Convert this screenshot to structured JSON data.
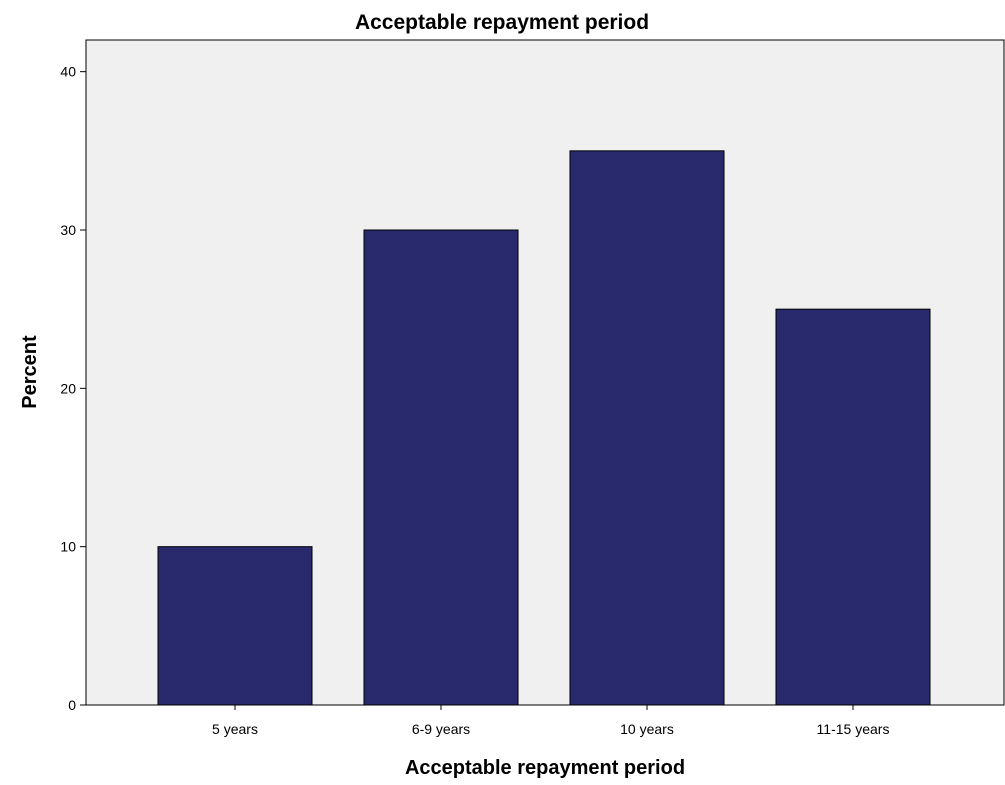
{
  "chart_data": {
    "type": "bar",
    "title": "Acceptable repayment period",
    "xlabel": "Acceptable repayment period",
    "ylabel": "Percent",
    "categories": [
      "5 years",
      "6-9 years",
      "10 years",
      "11-15 years"
    ],
    "values": [
      10,
      30,
      35,
      25
    ],
    "ylim": [
      0,
      42
    ],
    "yticks": [
      0,
      10,
      20,
      30,
      40
    ],
    "grid": false,
    "legend": "none",
    "colors": {
      "bar": "#29296e",
      "bar_outline": "#000000",
      "plot_background": "#f0f0f0",
      "page_background": "#ffffff"
    }
  }
}
